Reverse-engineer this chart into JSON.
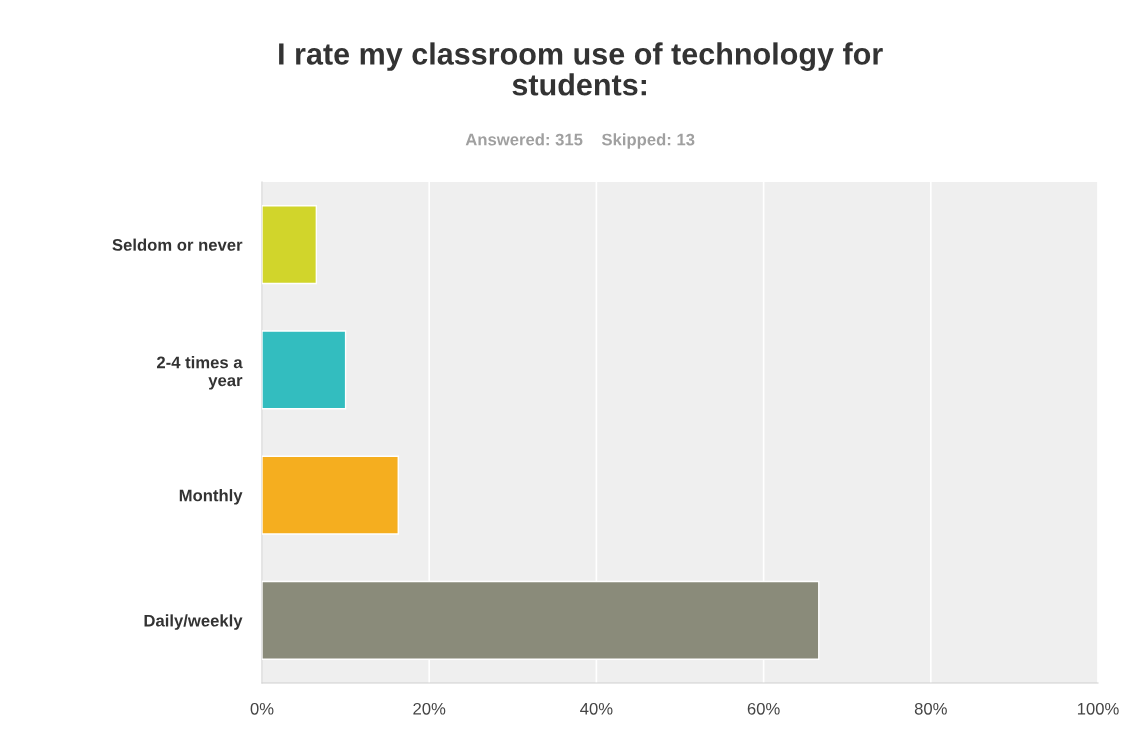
{
  "chart_data": {
    "type": "bar",
    "orientation": "horizontal",
    "title": "I rate my classroom use of technology for\nstudents:",
    "subtitle": "Answered: 315    Skipped: 13",
    "categories": [
      "Seldom or never",
      "2-4 times a\nyear",
      "Monthly",
      "Daily/weekly"
    ],
    "values": [
      6.5,
      10.0,
      16.3,
      66.6
    ],
    "colors": [
      "#d1d52b",
      "#33bdbf",
      "#f5ae1f",
      "#8a8b7a"
    ],
    "xlim": [
      0,
      100
    ],
    "xticks": [
      {
        "value": 0,
        "label": "0%"
      },
      {
        "value": 20,
        "label": "20%"
      },
      {
        "value": 40,
        "label": "40%"
      },
      {
        "value": 60,
        "label": "60%"
      },
      {
        "value": 80,
        "label": "80%"
      },
      {
        "value": 100,
        "label": "100%"
      }
    ],
    "grid": "x"
  }
}
